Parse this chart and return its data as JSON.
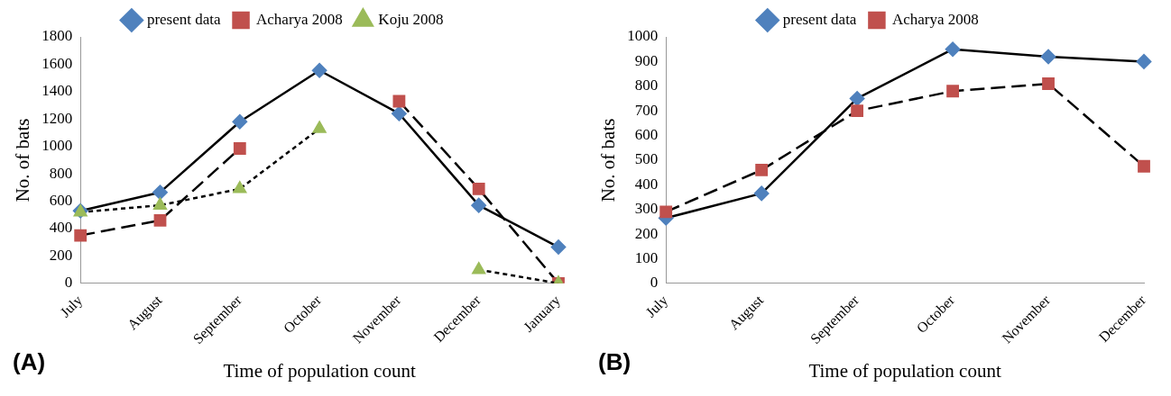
{
  "chart_data": [
    {
      "type": "line",
      "xlabel": "Time of population count",
      "ylabel": "No. of bats",
      "annotations": [
        "(A)"
      ],
      "categories": [
        "July",
        "August",
        "September",
        "October",
        "November",
        "December",
        "January"
      ],
      "ylim": [
        0,
        1800
      ],
      "yticks": [
        0,
        200,
        400,
        600,
        800,
        1000,
        1200,
        1400,
        1600,
        1800
      ],
      "grid": false,
      "legend": "top",
      "series": [
        {
          "name": "present data",
          "color": "#4f81bd",
          "marker": "diamond",
          "line_style": "solid",
          "values": [
            530,
            665,
            1180,
            1555,
            1240,
            570,
            265
          ]
        },
        {
          "name": "Acharya 2008",
          "color": "#c0504d",
          "marker": "square",
          "line_style": "dashed",
          "values": [
            350,
            460,
            985,
            null,
            1330,
            690,
            0
          ]
        },
        {
          "name": "Koju 2008",
          "color": "#9bbb59",
          "marker": "triangle",
          "line_style": "dotted",
          "values": [
            520,
            570,
            690,
            1130,
            null,
            100,
            0
          ]
        }
      ]
    },
    {
      "type": "line",
      "xlabel": "Time of population count",
      "ylabel": "No. of bats",
      "annotations": [
        "(B)"
      ],
      "categories": [
        "July",
        "August",
        "September",
        "October",
        "November",
        "December"
      ],
      "ylim": [
        0,
        1000
      ],
      "yticks": [
        0,
        100,
        200,
        300,
        400,
        500,
        600,
        700,
        800,
        900,
        1000
      ],
      "grid": false,
      "legend": "top",
      "series": [
        {
          "name": "present data",
          "color": "#4f81bd",
          "marker": "diamond",
          "line_style": "solid",
          "values": [
            265,
            365,
            750,
            950,
            920,
            900
          ]
        },
        {
          "name": "Acharya 2008",
          "color": "#c0504d",
          "marker": "square",
          "line_style": "dashed",
          "values": [
            290,
            460,
            700,
            780,
            810,
            475
          ]
        }
      ]
    }
  ]
}
